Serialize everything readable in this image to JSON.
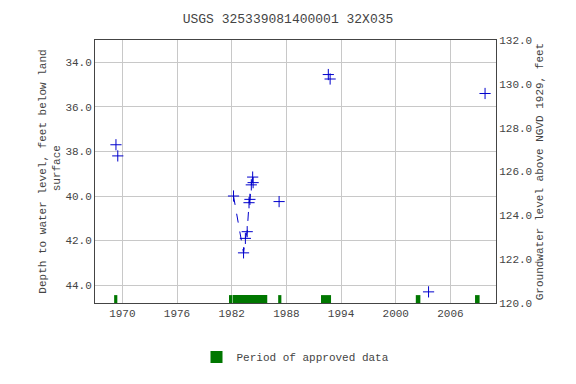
{
  "chart_data": {
    "type": "scatter",
    "title": "USGS 325339081400001 32X035",
    "ylabel": "Depth to water level, feet below land\n surface",
    "y2label": "Groundwater level above NGVD 1929, feet",
    "xlim": [
      1967,
      2011
    ],
    "xticks": [
      1970,
      1976,
      1982,
      1988,
      1994,
      2000,
      2006
    ],
    "ylim": [
      44.8,
      33.0
    ],
    "yticks": [
      {
        "value": 34.0,
        "label": "34.0"
      },
      {
        "value": 36.0,
        "label": "36.0"
      },
      {
        "value": 38.0,
        "label": "38.0"
      },
      {
        "value": 40.0,
        "label": "40.0"
      },
      {
        "value": 42.0,
        "label": "42.0"
      },
      {
        "value": 44.0,
        "label": "44.0"
      }
    ],
    "y2lim": [
      120.0,
      132.0
    ],
    "y2ticks": [
      {
        "value": 120.0,
        "label": "120.0"
      },
      {
        "value": 122.0,
        "label": "122.0"
      },
      {
        "value": 124.0,
        "label": "124.0"
      },
      {
        "value": 126.0,
        "label": "126.0"
      },
      {
        "value": 128.0,
        "label": "128.0"
      },
      {
        "value": 130.0,
        "label": "130.0"
      },
      {
        "value": 132.0,
        "label": "132.0"
      }
    ],
    "grid": true,
    "legend": "bottom",
    "series": [
      {
        "type": "line",
        "line_style": "dashed",
        "color": "#0000cc",
        "x": [
          1982.2,
          1983.3,
          1983.5,
          1983.7,
          1983.9,
          1984.0,
          1984.15,
          1984.3
        ],
        "values": [
          40.0,
          42.55,
          41.9,
          41.6,
          40.3,
          40.15,
          39.5,
          39.15
        ]
      },
      {
        "type": "scatter",
        "marker": "+",
        "color": "#0000cc",
        "x": [
          1969.3,
          1969.5,
          1982.2,
          1983.3,
          1983.5,
          1983.7,
          1983.9,
          1984.0,
          1984.15,
          1984.3,
          1984.35,
          1987.2,
          1992.6,
          1992.8,
          2003.6,
          2009.8
        ],
        "values": [
          37.7,
          38.2,
          40.0,
          42.55,
          41.9,
          41.6,
          40.3,
          40.15,
          39.5,
          39.15,
          39.4,
          40.25,
          34.55,
          34.75,
          44.3,
          35.4
        ]
      }
    ],
    "approved_periods": {
      "name": "Period of approved data",
      "color": "#007700",
      "x": [
        1969.1,
        1981.7,
        1982.1,
        1987.1,
        1991.8,
        2002.2,
        2008.7
      ],
      "width": [
        0.35,
        0.35,
        3.8,
        0.35,
        1.1,
        0.5,
        0.5
      ]
    }
  }
}
